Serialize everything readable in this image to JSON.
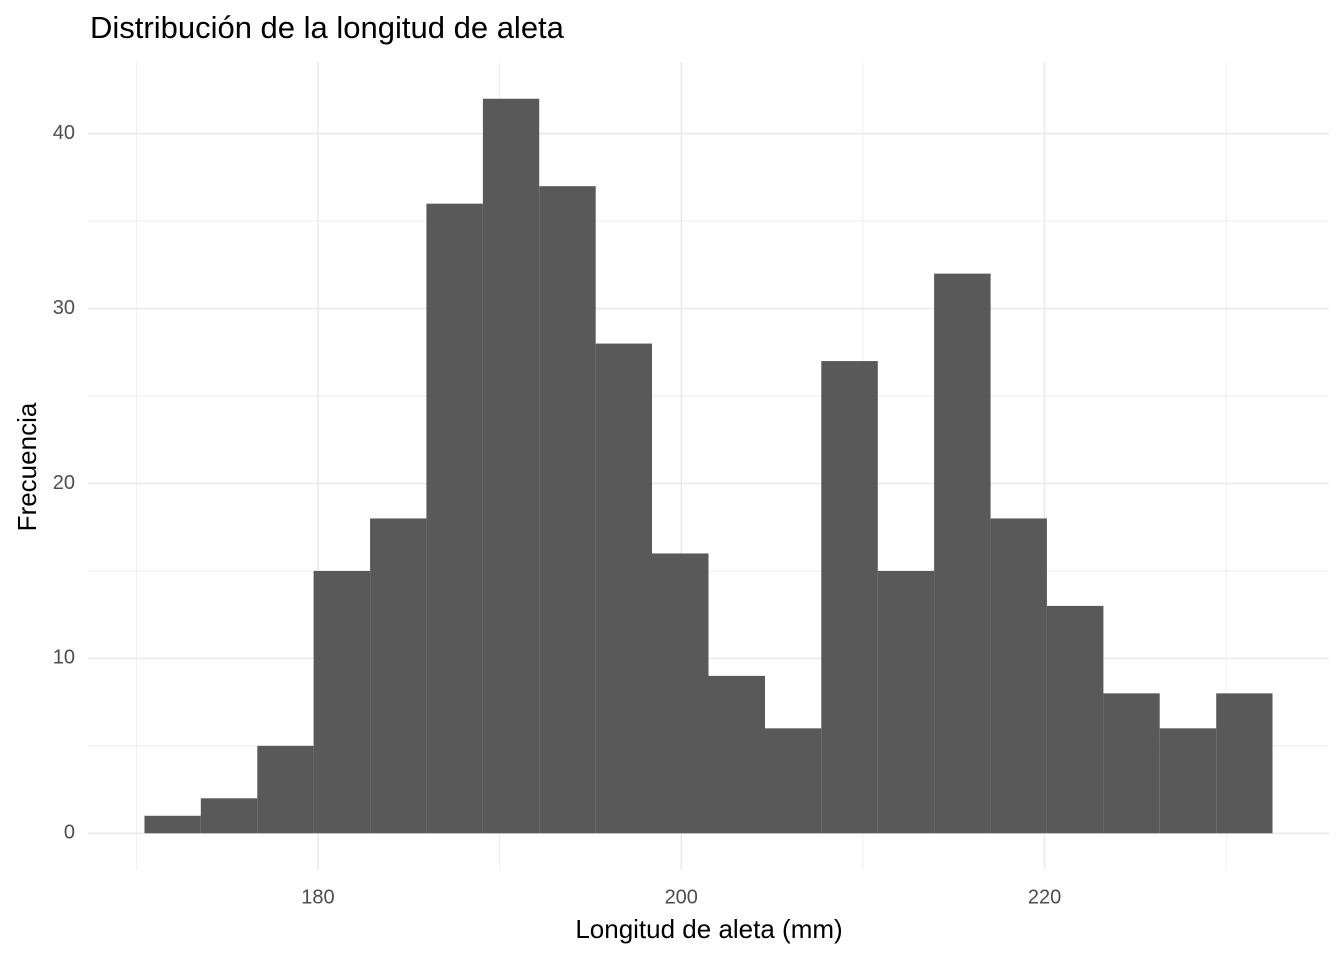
{
  "chart_data": {
    "type": "histogram",
    "title": "Distribución de la longitud de aleta",
    "x_label": "Longitud de aleta (mm)",
    "y_label": "Frecuencia",
    "bins": [
      170.45,
      173.55,
      176.66,
      179.76,
      182.87,
      185.97,
      189.08,
      192.18,
      195.29,
      198.39,
      201.5,
      204.61,
      207.71,
      210.82,
      213.92,
      217.03,
      220.13,
      223.24,
      226.34,
      229.45,
      232.55
    ],
    "values": [
      1,
      2,
      5,
      15,
      18,
      36,
      42,
      37,
      28,
      16,
      9,
      6,
      27,
      15,
      32,
      18,
      13,
      8,
      6,
      8
    ],
    "color": "#595959",
    "xlim": [
      167.34,
      235.66
    ],
    "ylim": [
      -2.1,
      44.1
    ],
    "xticks": [
      180,
      200,
      220
    ],
    "yticks": [
      0,
      10,
      20,
      30,
      40
    ],
    "x_minor_ticks": [
      170,
      190,
      210,
      230
    ],
    "y_minor_ticks": [
      5,
      15,
      25,
      35
    ],
    "grid": true
  }
}
